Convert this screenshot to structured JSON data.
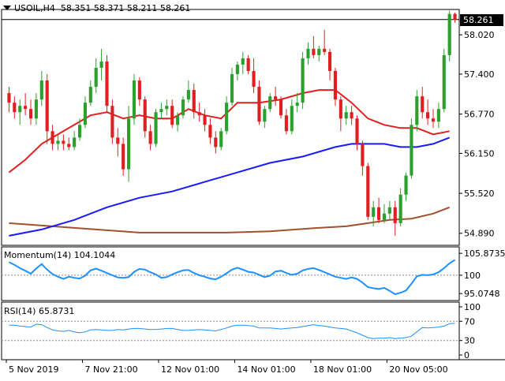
{
  "chart_data": [
    {
      "type": "candlestick",
      "symbol": "USOIL",
      "timeframe": "H4",
      "ohlc_header": {
        "open": "58.351",
        "high": "58.371",
        "low": "58.211",
        "close": "58.261"
      },
      "last_price_label": "58.261",
      "yaxis_ticks": [
        "58.020",
        "57.400",
        "56.770",
        "56.150",
        "55.520",
        "54.890"
      ],
      "ylim": [
        54.7,
        58.42
      ],
      "xaxis_ticks": [
        "5 Nov 2019",
        "7 Nov 21:00",
        "12 Nov 01:00",
        "14 Nov 01:00",
        "18 Nov 01:00",
        "20 Nov 05:00"
      ],
      "up_color": "#2ca02c",
      "down_color": "#e02020",
      "candles": [
        [
          57.1,
          57.2,
          56.8,
          56.95
        ],
        [
          56.95,
          57.05,
          56.7,
          56.8
        ],
        [
          56.8,
          57.0,
          56.6,
          56.9
        ],
        [
          56.9,
          57.1,
          56.75,
          56.85
        ],
        [
          56.85,
          57.0,
          56.6,
          56.7
        ],
        [
          56.7,
          57.1,
          56.6,
          57.0
        ],
        [
          57.0,
          57.45,
          56.9,
          57.3
        ],
        [
          57.3,
          57.4,
          56.3,
          56.5
        ],
        [
          56.5,
          56.6,
          56.2,
          56.3
        ],
        [
          56.3,
          56.45,
          56.2,
          56.35
        ],
        [
          56.35,
          56.45,
          56.2,
          56.3
        ],
        [
          56.3,
          56.4,
          56.2,
          56.25
        ],
        [
          56.25,
          56.5,
          56.2,
          56.4
        ],
        [
          56.4,
          56.7,
          56.35,
          56.6
        ],
        [
          56.6,
          57.05,
          56.55,
          56.95
        ],
        [
          56.95,
          57.3,
          56.9,
          57.2
        ],
        [
          57.2,
          57.65,
          57.1,
          57.5
        ],
        [
          57.5,
          57.8,
          57.3,
          57.6
        ],
        [
          57.6,
          57.7,
          56.8,
          56.9
        ],
        [
          56.9,
          57.0,
          56.3,
          56.4
        ],
        [
          56.4,
          56.55,
          56.1,
          56.3
        ],
        [
          56.3,
          56.4,
          55.8,
          55.9
        ],
        [
          55.9,
          56.9,
          55.7,
          56.7
        ],
        [
          56.7,
          57.4,
          56.6,
          57.3
        ],
        [
          57.3,
          57.35,
          56.9,
          57.0
        ],
        [
          57.0,
          57.05,
          56.4,
          56.5
        ],
        [
          56.5,
          56.6,
          56.2,
          56.3
        ],
        [
          56.3,
          56.85,
          56.25,
          56.8
        ],
        [
          56.8,
          56.95,
          56.7,
          56.85
        ],
        [
          56.85,
          57.0,
          56.75,
          56.9
        ],
        [
          56.9,
          57.0,
          56.55,
          56.6
        ],
        [
          56.6,
          56.8,
          56.5,
          56.75
        ],
        [
          56.75,
          57.05,
          56.7,
          57.0
        ],
        [
          57.0,
          57.3,
          56.95,
          57.15
        ],
        [
          57.15,
          57.25,
          56.7,
          56.8
        ],
        [
          56.8,
          56.95,
          56.65,
          56.75
        ],
        [
          56.75,
          56.85,
          56.5,
          56.6
        ],
        [
          56.6,
          56.7,
          56.3,
          56.4
        ],
        [
          56.4,
          56.5,
          56.15,
          56.25
        ],
        [
          56.25,
          56.55,
          56.2,
          56.5
        ],
        [
          56.5,
          57.05,
          56.45,
          56.95
        ],
        [
          56.95,
          57.5,
          56.9,
          57.4
        ],
        [
          57.4,
          57.6,
          57.3,
          57.55
        ],
        [
          57.55,
          57.75,
          57.4,
          57.65
        ],
        [
          57.65,
          57.7,
          57.4,
          57.45
        ],
        [
          57.45,
          57.65,
          57.1,
          57.2
        ],
        [
          57.2,
          57.3,
          56.6,
          56.65
        ],
        [
          56.65,
          56.9,
          56.55,
          56.85
        ],
        [
          56.85,
          57.1,
          56.8,
          57.05
        ],
        [
          57.05,
          57.2,
          56.9,
          57.0
        ],
        [
          57.0,
          57.05,
          56.7,
          56.75
        ],
        [
          56.75,
          56.85,
          56.45,
          56.5
        ],
        [
          56.5,
          57.0,
          56.45,
          56.9
        ],
        [
          56.9,
          57.1,
          56.8,
          56.95
        ],
        [
          56.95,
          57.75,
          56.85,
          57.65
        ],
        [
          57.65,
          57.9,
          57.55,
          57.8
        ],
        [
          57.8,
          58.0,
          57.65,
          57.7
        ],
        [
          57.7,
          57.85,
          57.6,
          57.8
        ],
        [
          57.8,
          58.1,
          57.7,
          57.75
        ],
        [
          57.75,
          57.8,
          57.3,
          57.45
        ],
        [
          57.45,
          57.5,
          56.9,
          57.0
        ],
        [
          57.0,
          57.05,
          56.5,
          56.7
        ],
        [
          56.7,
          56.9,
          56.6,
          56.8
        ],
        [
          56.8,
          56.9,
          56.6,
          56.7
        ],
        [
          56.7,
          56.75,
          56.2,
          56.3
        ],
        [
          56.3,
          56.35,
          55.8,
          55.95
        ],
        [
          55.95,
          56.0,
          55.1,
          55.15
        ],
        [
          55.15,
          55.4,
          55.0,
          55.3
        ],
        [
          55.3,
          55.45,
          55.05,
          55.1
        ],
        [
          55.1,
          55.35,
          55.05,
          55.2
        ],
        [
          55.2,
          55.4,
          55.1,
          55.3
        ],
        [
          55.3,
          55.4,
          54.85,
          55.05
        ],
        [
          55.05,
          55.6,
          55.0,
          55.5
        ],
        [
          55.5,
          55.85,
          55.4,
          55.8
        ],
        [
          55.8,
          56.7,
          55.75,
          56.6
        ],
        [
          56.6,
          57.15,
          56.5,
          57.05
        ],
        [
          57.05,
          57.2,
          56.7,
          56.8
        ],
        [
          56.8,
          57.0,
          56.6,
          56.7
        ],
        [
          56.7,
          56.85,
          56.55,
          56.65
        ],
        [
          56.65,
          56.95,
          56.55,
          56.85
        ],
        [
          56.85,
          57.8,
          56.8,
          57.7
        ],
        [
          57.7,
          58.4,
          57.6,
          58.35
        ],
        [
          58.35,
          58.37,
          58.21,
          58.26
        ]
      ],
      "ma_fast": {
        "color": "#e02020",
        "points": [
          [
            0,
            55.85
          ],
          [
            3,
            56.05
          ],
          [
            6,
            56.3
          ],
          [
            9,
            56.45
          ],
          [
            12,
            56.6
          ],
          [
            15,
            56.75
          ],
          [
            18,
            56.8
          ],
          [
            21,
            56.7
          ],
          [
            24,
            56.75
          ],
          [
            27,
            56.7
          ],
          [
            30,
            56.7
          ],
          [
            33,
            56.85
          ],
          [
            36,
            56.75
          ],
          [
            39,
            56.7
          ],
          [
            42,
            56.95
          ],
          [
            46,
            56.95
          ],
          [
            50,
            57.0
          ],
          [
            54,
            57.1
          ],
          [
            57,
            57.15
          ],
          [
            60,
            57.15
          ],
          [
            63,
            56.95
          ],
          [
            66,
            56.7
          ],
          [
            69,
            56.6
          ],
          [
            72,
            56.55
          ],
          [
            75,
            56.55
          ],
          [
            78,
            56.45
          ],
          [
            81,
            56.5
          ]
        ]
      },
      "ma_mid": {
        "color": "#1a1aff",
        "points": [
          [
            0,
            54.85
          ],
          [
            6,
            54.95
          ],
          [
            12,
            55.1
          ],
          [
            18,
            55.3
          ],
          [
            24,
            55.45
          ],
          [
            30,
            55.55
          ],
          [
            36,
            55.7
          ],
          [
            42,
            55.85
          ],
          [
            48,
            56.0
          ],
          [
            54,
            56.1
          ],
          [
            60,
            56.25
          ],
          [
            63,
            56.3
          ],
          [
            66,
            56.3
          ],
          [
            69,
            56.3
          ],
          [
            72,
            56.25
          ],
          [
            75,
            56.25
          ],
          [
            78,
            56.3
          ],
          [
            81,
            56.4
          ]
        ]
      },
      "ma_slow": {
        "color": "#a0522d",
        "points": [
          [
            0,
            55.05
          ],
          [
            8,
            55.0
          ],
          [
            16,
            54.95
          ],
          [
            24,
            54.9
          ],
          [
            32,
            54.9
          ],
          [
            40,
            54.9
          ],
          [
            48,
            54.92
          ],
          [
            56,
            54.97
          ],
          [
            62,
            55.0
          ],
          [
            66,
            55.05
          ],
          [
            70,
            55.1
          ],
          [
            74,
            55.12
          ],
          [
            78,
            55.2
          ],
          [
            81,
            55.3
          ]
        ]
      }
    },
    {
      "type": "line",
      "title": "Momentum(14) 104.1044",
      "yaxis_ticks": [
        "105.8735",
        "100",
        "95.0748"
      ],
      "ylim": [
        93.2,
        107.6
      ],
      "reference_level": 100,
      "color": "#1e90ff",
      "values": [
        103.5,
        102.8,
        101.9,
        101.2,
        100.4,
        101.8,
        103.0,
        101.5,
        100.3,
        99.6,
        99.0,
        99.6,
        99.3,
        99.1,
        99.9,
        101.3,
        101.8,
        101.2,
        100.6,
        100.0,
        99.4,
        99.3,
        99.5,
        100.9,
        101.7,
        101.5,
        100.8,
        100.2,
        99.3,
        99.5,
        100.2,
        100.8,
        101.3,
        101.4,
        100.6,
        100.0,
        99.6,
        99.1,
        98.9,
        99.6,
        100.5,
        101.5,
        102.0,
        101.5,
        100.9,
        100.7,
        100.1,
        99.5,
        99.9,
        101.0,
        101.2,
        100.6,
        100.1,
        100.4,
        101.3,
        101.7,
        101.9,
        101.4,
        100.8,
        100.2,
        99.6,
        99.3,
        99.0,
        99.4,
        99.0,
        98.0,
        96.8,
        96.5,
        96.3,
        96.6,
        95.8,
        94.9,
        95.3,
        95.9,
        97.7,
        99.7,
        100.1,
        100.0,
        100.2,
        100.8,
        101.9,
        103.2,
        104.1
      ]
    },
    {
      "type": "line",
      "title": "RSI(14) 65.8731",
      "yaxis_ticks": [
        "100",
        "70",
        "30",
        "0"
      ],
      "ylim": [
        0,
        100
      ],
      "levels": [
        70,
        30
      ],
      "color": "#1e90ff",
      "values": [
        62,
        62,
        60,
        59,
        58,
        64,
        63,
        57,
        52,
        50,
        49,
        51,
        48,
        46,
        48,
        52,
        53,
        52,
        51,
        51,
        53,
        52,
        54,
        55,
        55,
        54,
        53,
        53,
        54,
        55,
        55,
        53,
        51,
        51,
        52,
        53,
        52,
        51,
        50,
        53,
        56,
        60,
        62,
        62,
        61,
        60,
        56,
        56,
        56,
        55,
        54,
        55,
        56,
        57,
        59,
        61,
        63,
        61,
        60,
        58,
        56,
        55,
        54,
        50,
        46,
        41,
        36,
        34,
        35,
        35,
        36,
        34,
        35,
        36,
        39,
        48,
        57,
        56,
        57,
        58,
        60,
        65,
        66
      ]
    }
  ]
}
